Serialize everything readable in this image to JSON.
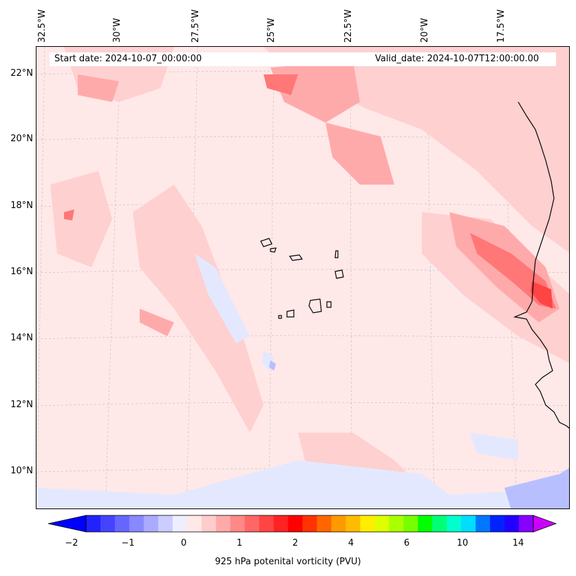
{
  "header": {
    "start_date": "Start date: 2024-10-07_00:00:00",
    "valid_date": "Valid_date: 2024-10-07T12:00:00.00"
  },
  "map": {
    "lon_labels": [
      "32.5°W",
      "30°W",
      "27.5°W",
      "25°W",
      "22.5°W",
      "20°W",
      "17.5°W"
    ],
    "lat_labels": [
      "22°N",
      "20°N",
      "18°N",
      "16°N",
      "14°N",
      "12°N",
      "10°N"
    ],
    "background_color": "#ffe8e8"
  },
  "colorbar": {
    "tick_labels": [
      "−2",
      "−1",
      "0",
      "1",
      "2",
      "4",
      "6",
      "10",
      "14"
    ],
    "label": "925 hPa potenital vorticity (PVU)",
    "colors": [
      "#0000ff",
      "#2222ff",
      "#4444ff",
      "#6666ff",
      "#8888ff",
      "#aaaaff",
      "#ccccff",
      "#eeeeff",
      "#ffe8e8",
      "#ffcccc",
      "#ffaaaa",
      "#ff8888",
      "#ff6666",
      "#ff4444",
      "#ff2222",
      "#ff0000",
      "#ff3300",
      "#ff6600",
      "#ff9900",
      "#ffbb00",
      "#ffee00",
      "#ddff00",
      "#aaff00",
      "#77ff00",
      "#00ff00",
      "#00ff77",
      "#00ffcc",
      "#00ddff",
      "#0077ff",
      "#0022ff",
      "#2200ff",
      "#8800ff",
      "#cc00ff"
    ]
  }
}
